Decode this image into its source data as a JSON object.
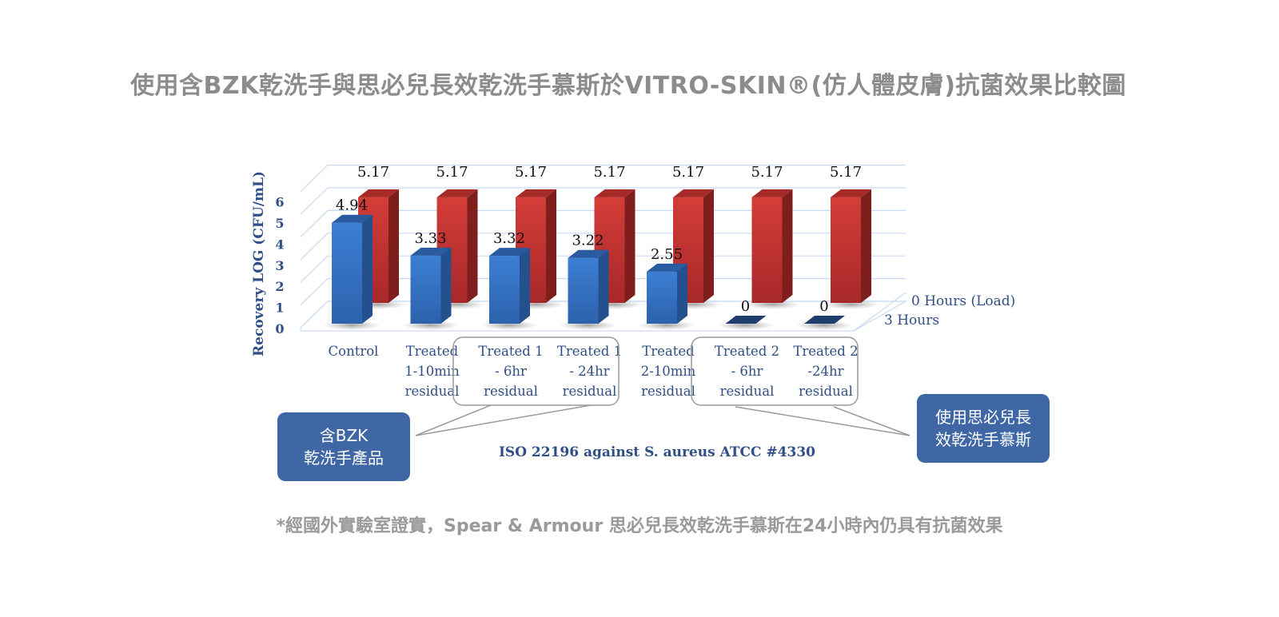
{
  "title": "使用含BZK乾洗手與思必兒長效乾洗手慕斯於VITRO-SKIN®(仿人體皮膚)抗菌效果比較圖",
  "footnote": "*經國外實驗室證實，Spear & Armour 思必兒長效乾洗手慕斯在24小時內仍具有抗菌效果",
  "callouts": {
    "left": {
      "line1": "含BZK",
      "line2": "乾洗手產品"
    },
    "right": {
      "line1": "使用思必兒長",
      "line2": "效乾洗手慕斯"
    }
  },
  "colors": {
    "series_3h_front": "#3a76c6",
    "series_3h_side": "#24508e",
    "series_0h_front": "#c23431",
    "series_0h_side": "#7e1f1e",
    "axis_text": "#2f4f86",
    "grid": "#c9dbf2",
    "callout_bg": "#3f67a6"
  },
  "chart_data": {
    "type": "bar",
    "style": "3d-clustered-columns",
    "title": "",
    "xlabel": "ISO 22196 against S. aureus ATCC #4330",
    "ylabel": "Recovery LOG (CFU/mL)",
    "ylim": [
      0,
      6
    ],
    "yticks": [
      0,
      1,
      2,
      3,
      4,
      5,
      6
    ],
    "grid": true,
    "legend_position": "right-depth",
    "categories": [
      [
        "Control"
      ],
      [
        "Treated",
        "1-10min",
        "residual"
      ],
      [
        "Treated 1",
        "-    6hr",
        "residual"
      ],
      [
        "Treated 1",
        "-    24hr",
        "residual"
      ],
      [
        "Treated",
        "2-10min",
        "residual"
      ],
      [
        "Treated 2",
        "-    6hr",
        "residual"
      ],
      [
        "Treated 2",
        "-24hr",
        "residual"
      ]
    ],
    "series": [
      {
        "name": "3 Hours",
        "values": [
          4.94,
          3.33,
          3.32,
          3.22,
          2.55,
          0,
          0
        ],
        "labels": [
          "4.94",
          "3.33",
          "3.32",
          "3.22",
          "2.55",
          "0",
          "0"
        ]
      },
      {
        "name": "0 Hours (Load)",
        "values": [
          5.17,
          5.17,
          5.17,
          5.17,
          5.17,
          5.17,
          5.17
        ],
        "labels": [
          "5.17",
          "5.17",
          "5.17",
          "5.17",
          "5.17",
          "5.17",
          "5.17"
        ]
      }
    ]
  }
}
